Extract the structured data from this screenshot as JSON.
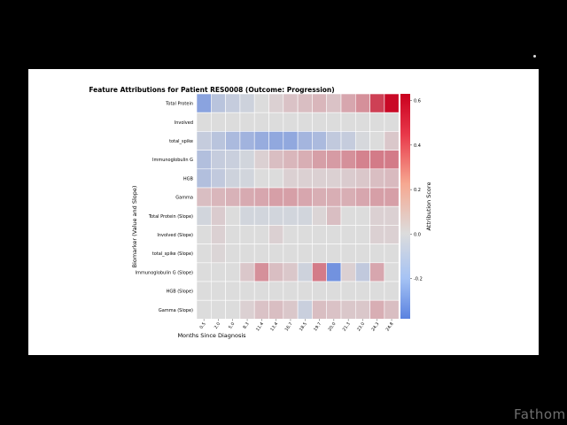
{
  "watermark": "Fathom",
  "chart_data": {
    "type": "heatmap",
    "title": "Feature Attributions for Patient RES0008 (Outcome: Progression)",
    "xlabel": "Months Since Diagnosis",
    "ylabel": "Biomarker (Value and Slope)",
    "colorbar_label": "Attribution Score",
    "colorbar_range": [
      -0.38,
      0.63
    ],
    "colorbar_ticks": [
      "0.6",
      "0.4",
      "0.2",
      "0.0",
      "-0.2"
    ],
    "colorbar_tick_values": [
      0.6,
      0.4,
      0.2,
      0.0,
      -0.2
    ],
    "x_ticks": [
      "0.5",
      "2.0",
      "5.0",
      "8.3",
      "11.4",
      "13.4",
      "16.7",
      "18.5",
      "19.7",
      "20.0",
      "21.3",
      "23.0",
      "24.3",
      "24.8"
    ],
    "y_labels": [
      "Total Protein",
      "Involved",
      "total_spike",
      "Immunoglobulin G",
      "HGB",
      "Gamma",
      "Total Protein (Slope)",
      "Involved (Slope)",
      "total_spike (Slope)",
      "Immunoglobulin G (Slope)",
      "HGB (Slope)",
      "Gamma (Slope)"
    ],
    "values": [
      [
        -0.22,
        -0.08,
        -0.05,
        -0.03,
        0.0,
        0.02,
        0.05,
        0.06,
        0.08,
        0.05,
        0.12,
        0.18,
        0.42,
        0.6
      ],
      [
        0.0,
        0.0,
        0.0,
        0.0,
        0.0,
        0.0,
        0.0,
        0.0,
        0.0,
        0.0,
        0.0,
        0.0,
        0.0,
        0.0
      ],
      [
        -0.05,
        -0.08,
        -0.12,
        -0.15,
        -0.18,
        -0.2,
        -0.2,
        -0.14,
        -0.12,
        -0.06,
        -0.05,
        -0.01,
        0.0,
        0.04
      ],
      [
        -0.1,
        -0.05,
        -0.04,
        -0.02,
        0.02,
        0.06,
        0.08,
        0.1,
        0.14,
        0.15,
        0.18,
        0.22,
        0.24,
        0.24
      ],
      [
        -0.1,
        -0.06,
        -0.03,
        -0.02,
        0.0,
        0.0,
        0.02,
        0.02,
        0.02,
        0.02,
        0.03,
        0.04,
        0.06,
        0.07
      ],
      [
        0.06,
        0.08,
        0.09,
        0.11,
        0.12,
        0.14,
        0.14,
        0.12,
        0.1,
        0.1,
        0.1,
        0.12,
        0.14,
        0.14
      ],
      [
        -0.02,
        0.03,
        0.0,
        -0.02,
        -0.02,
        -0.02,
        -0.02,
        -0.02,
        0.01,
        0.06,
        0.0,
        0.0,
        0.02,
        0.02
      ],
      [
        0.0,
        0.02,
        0.0,
        0.0,
        0.0,
        0.02,
        0.0,
        0.0,
        0.0,
        0.0,
        0.0,
        0.0,
        0.02,
        0.02
      ],
      [
        0.0,
        0.01,
        0.0,
        0.0,
        0.0,
        0.0,
        0.0,
        0.0,
        0.0,
        0.0,
        0.0,
        0.0,
        0.0,
        0.0
      ],
      [
        0.0,
        0.0,
        0.0,
        0.04,
        0.18,
        0.06,
        0.04,
        -0.03,
        0.24,
        -0.3,
        0.02,
        -0.06,
        0.12,
        0.0
      ],
      [
        0.0,
        0.0,
        0.0,
        0.0,
        0.0,
        0.0,
        0.0,
        0.0,
        0.0,
        0.0,
        0.0,
        0.0,
        0.0,
        0.0
      ],
      [
        0.0,
        0.0,
        0.0,
        0.02,
        0.05,
        0.06,
        0.04,
        -0.04,
        0.06,
        0.05,
        0.04,
        0.04,
        0.1,
        0.06
      ]
    ]
  }
}
